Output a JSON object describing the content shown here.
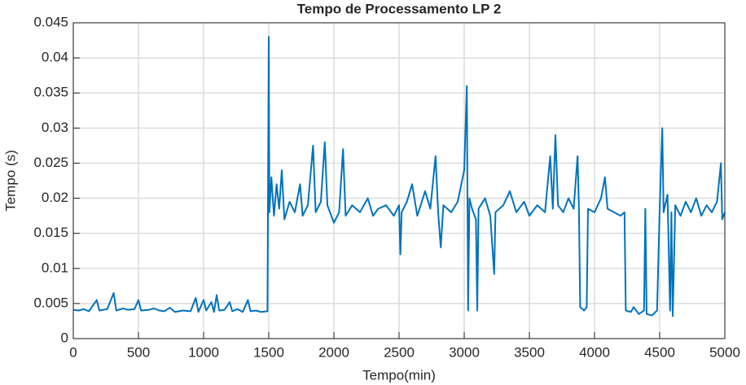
{
  "chart_data": {
    "type": "line",
    "title": "Tempo de Processamento LP 2",
    "xlabel": "Tempo(min)",
    "ylabel": "Tempo (s)",
    "color": "#0072bd",
    "grid": true,
    "xlim": [
      0,
      5000
    ],
    "xticks": [
      0,
      500,
      1000,
      1500,
      2000,
      2500,
      3000,
      3500,
      4000,
      4500,
      5000
    ],
    "ylim": [
      0,
      0.045
    ],
    "yticks": [
      0,
      0.005,
      0.01,
      0.015,
      0.02,
      0.025,
      0.03,
      0.035,
      0.04,
      0.045
    ],
    "x": [
      0,
      40,
      80,
      120,
      180,
      200,
      260,
      310,
      330,
      380,
      420,
      470,
      500,
      520,
      580,
      620,
      660,
      700,
      740,
      780,
      840,
      900,
      940,
      960,
      1000,
      1020,
      1060,
      1080,
      1100,
      1120,
      1160,
      1200,
      1220,
      1260,
      1300,
      1340,
      1360,
      1400,
      1440,
      1490,
      1500,
      1505,
      1520,
      1540,
      1560,
      1580,
      1600,
      1620,
      1660,
      1700,
      1740,
      1760,
      1800,
      1840,
      1860,
      1900,
      1930,
      1950,
      2000,
      2040,
      2070,
      2090,
      2140,
      2200,
      2260,
      2300,
      2340,
      2400,
      2460,
      2500,
      2510,
      2520,
      2560,
      2600,
      2640,
      2700,
      2740,
      2780,
      2800,
      2820,
      2840,
      2900,
      2950,
      3000,
      3020,
      3030,
      3040,
      3060,
      3090,
      3100,
      3110,
      3160,
      3200,
      3230,
      3240,
      3300,
      3350,
      3400,
      3460,
      3500,
      3560,
      3620,
      3660,
      3680,
      3700,
      3720,
      3760,
      3800,
      3840,
      3870,
      3880,
      3890,
      3920,
      3940,
      3950,
      4000,
      4050,
      4080,
      4100,
      4150,
      4200,
      4230,
      4240,
      4280,
      4300,
      4340,
      4380,
      4390,
      4400,
      4440,
      4480,
      4500,
      4520,
      4530,
      4560,
      4580,
      4590,
      4600,
      4620,
      4660,
      4700,
      4740,
      4780,
      4820,
      4860,
      4900,
      4940,
      4970,
      4980,
      5000
    ],
    "values": [
      0.0041,
      0.004,
      0.0042,
      0.0039,
      0.0055,
      0.004,
      0.0042,
      0.0065,
      0.004,
      0.0043,
      0.0041,
      0.0042,
      0.0055,
      0.004,
      0.0041,
      0.0043,
      0.004,
      0.0039,
      0.0044,
      0.0038,
      0.004,
      0.0039,
      0.0058,
      0.0038,
      0.0055,
      0.004,
      0.0052,
      0.0038,
      0.0062,
      0.004,
      0.0041,
      0.0052,
      0.0039,
      0.0042,
      0.0038,
      0.0055,
      0.0039,
      0.004,
      0.0038,
      0.0039,
      0.043,
      0.018,
      0.023,
      0.0175,
      0.022,
      0.0185,
      0.024,
      0.017,
      0.0195,
      0.018,
      0.022,
      0.0175,
      0.019,
      0.0275,
      0.018,
      0.0195,
      0.028,
      0.019,
      0.0165,
      0.018,
      0.027,
      0.0175,
      0.019,
      0.018,
      0.02,
      0.0175,
      0.0185,
      0.019,
      0.0175,
      0.019,
      0.012,
      0.018,
      0.0195,
      0.022,
      0.0175,
      0.021,
      0.0185,
      0.026,
      0.018,
      0.013,
      0.019,
      0.018,
      0.0195,
      0.024,
      0.036,
      0.004,
      0.02,
      0.0185,
      0.017,
      0.004,
      0.0185,
      0.02,
      0.0175,
      0.0092,
      0.018,
      0.019,
      0.021,
      0.018,
      0.0195,
      0.0175,
      0.019,
      0.018,
      0.026,
      0.0185,
      0.029,
      0.019,
      0.018,
      0.02,
      0.0185,
      0.026,
      0.019,
      0.0045,
      0.004,
      0.0045,
      0.0185,
      0.018,
      0.02,
      0.023,
      0.0185,
      0.018,
      0.0175,
      0.018,
      0.004,
      0.0038,
      0.0045,
      0.0035,
      0.004,
      0.0185,
      0.0035,
      0.0033,
      0.004,
      0.0185,
      0.03,
      0.018,
      0.0205,
      0.004,
      0.018,
      0.0032,
      0.019,
      0.0175,
      0.0195,
      0.018,
      0.02,
      0.0175,
      0.019,
      0.018,
      0.0195,
      0.025,
      0.017,
      0.018
    ]
  }
}
